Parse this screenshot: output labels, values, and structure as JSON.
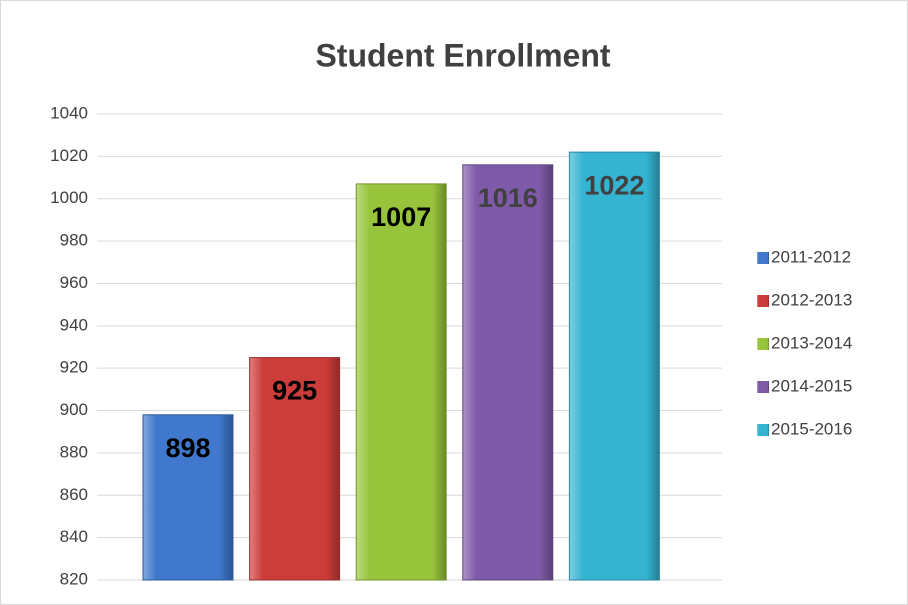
{
  "chart_data": {
    "type": "bar",
    "title": "Student Enrollment",
    "categories": [
      null
    ],
    "series": [
      {
        "name": "2011-2012",
        "color": "#3f78cc",
        "label_color": "#000000",
        "values": [
          898
        ]
      },
      {
        "name": "2012-2013",
        "color": "#cc3c3a",
        "label_color": "#000000",
        "values": [
          925
        ]
      },
      {
        "name": "2013-2014",
        "color": "#98c43c",
        "label_color": "#000000",
        "values": [
          1007
        ]
      },
      {
        "name": "2014-2015",
        "color": "#7f5aa8",
        "label_color": "#404040",
        "values": [
          1016
        ]
      },
      {
        "name": "2015-2016",
        "color": "#35b4d2",
        "label_color": "#404040",
        "values": [
          1022
        ]
      }
    ],
    "ylim": [
      820,
      1040
    ],
    "yticks": [
      820,
      840,
      860,
      880,
      900,
      920,
      940,
      960,
      980,
      1000,
      1020,
      1040
    ],
    "grid": true,
    "legend": "right"
  }
}
